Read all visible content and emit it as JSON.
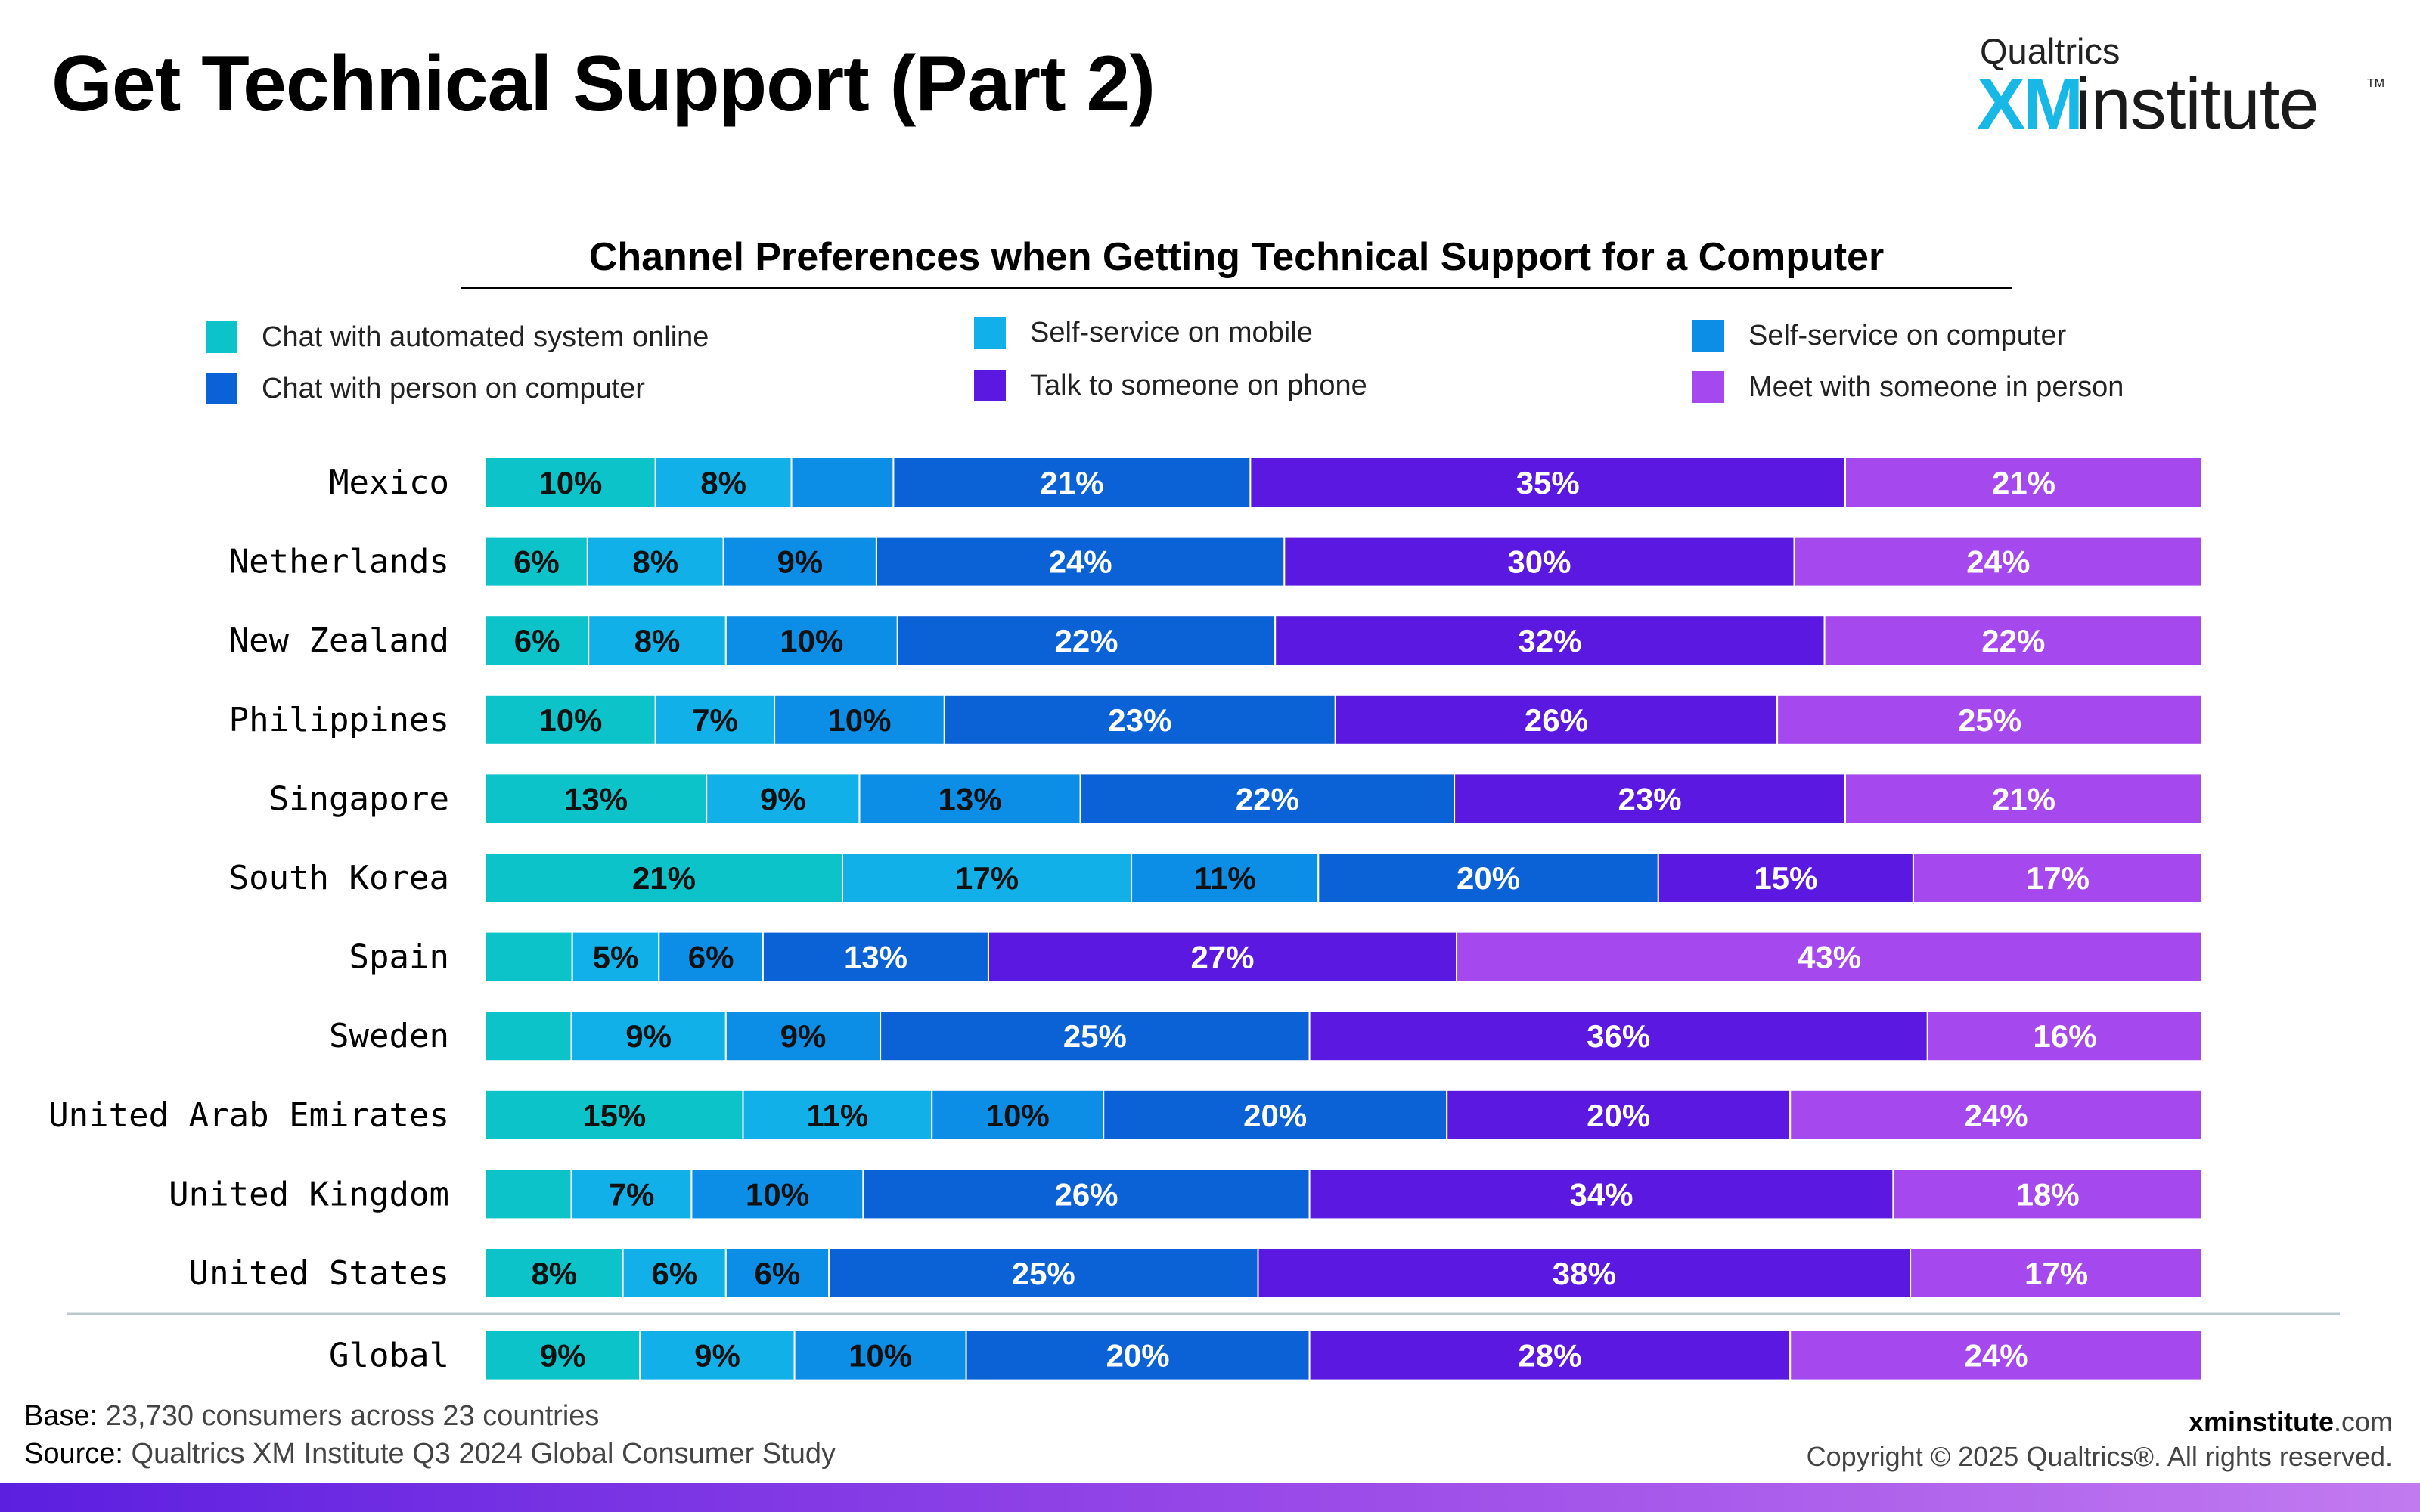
{
  "page": {
    "title": "Get Technical Support (Part 2)",
    "logo_top": "Qualtrics",
    "logo_xm": "XM",
    "logo_institute": "institute",
    "logo_tm": "TM"
  },
  "footer": {
    "base_label": "Base:",
    "base_text": "23,730 consumers across 23 countries",
    "source_label": "Source:",
    "source_text": "Qualtrics XM Institute Q3 2024 Global Consumer Study",
    "site_bold": "xminstitute",
    "site_suffix": ".com",
    "copyright": "Copyright © 2025 Qualtrics®. All rights reserved."
  },
  "chart_data": {
    "type": "bar",
    "orientation": "horizontal",
    "stacked": true,
    "title": "Channel Preferences when Getting Technical Support for a Computer",
    "xlim": [
      0,
      100
    ],
    "grid": false,
    "legend_position": "top",
    "categories": [
      "Mexico",
      "Netherlands",
      "New Zealand",
      "Philippines",
      "Singapore",
      "South Korea",
      "Spain",
      "Sweden",
      "United Arab Emirates",
      "United Kingdom",
      "United States",
      "Global"
    ],
    "series": [
      {
        "name": "Chat with automated system online",
        "color": "#0bc3c9",
        "values": [
          10,
          6,
          6,
          10,
          13,
          21,
          5,
          5,
          15,
          5,
          8,
          9
        ],
        "labels": [
          "10%",
          "6%",
          "6%",
          "10%",
          "13%",
          "21%",
          "",
          "",
          "15%",
          "",
          "8%",
          "9%"
        ]
      },
      {
        "name": "Self-service on mobile",
        "color": "#12b0e8",
        "values": [
          8,
          8,
          8,
          7,
          9,
          17,
          5,
          9,
          11,
          7,
          6,
          9
        ],
        "labels": [
          "8%",
          "8%",
          "8%",
          "7%",
          "9%",
          "17%",
          "5%",
          "9%",
          "11%",
          "7%",
          "6%",
          "9%"
        ]
      },
      {
        "name": "Self-service on computer",
        "color": "#0c8ee6",
        "values": [
          6,
          9,
          10,
          10,
          13,
          11,
          6,
          9,
          10,
          10,
          6,
          10
        ],
        "labels": [
          "",
          "9%",
          "10%",
          "10%",
          "13%",
          "11%",
          "6%",
          "9%",
          "10%",
          "10%",
          "6%",
          "10%"
        ]
      },
      {
        "name": "Chat with person on computer",
        "color": "#0b62d6",
        "values": [
          21,
          24,
          22,
          23,
          22,
          20,
          13,
          25,
          20,
          26,
          25,
          20
        ],
        "labels": [
          "21%",
          "24%",
          "22%",
          "23%",
          "22%",
          "20%",
          "13%",
          "25%",
          "20%",
          "26%",
          "25%",
          "20%"
        ]
      },
      {
        "name": "Talk to someone on phone",
        "color": "#5b18e0",
        "values": [
          35,
          30,
          32,
          26,
          23,
          15,
          27,
          36,
          20,
          34,
          38,
          28
        ],
        "labels": [
          "35%",
          "30%",
          "32%",
          "26%",
          "23%",
          "15%",
          "27%",
          "36%",
          "20%",
          "34%",
          "38%",
          "28%"
        ]
      },
      {
        "name": "Meet with someone in person",
        "color": "#a548ee",
        "values": [
          21,
          24,
          22,
          25,
          21,
          17,
          43,
          16,
          24,
          18,
          17,
          24
        ],
        "labels": [
          "21%",
          "24%",
          "22%",
          "25%",
          "21%",
          "17%",
          "43%",
          "16%",
          "24%",
          "18%",
          "17%",
          "24%"
        ]
      }
    ]
  }
}
